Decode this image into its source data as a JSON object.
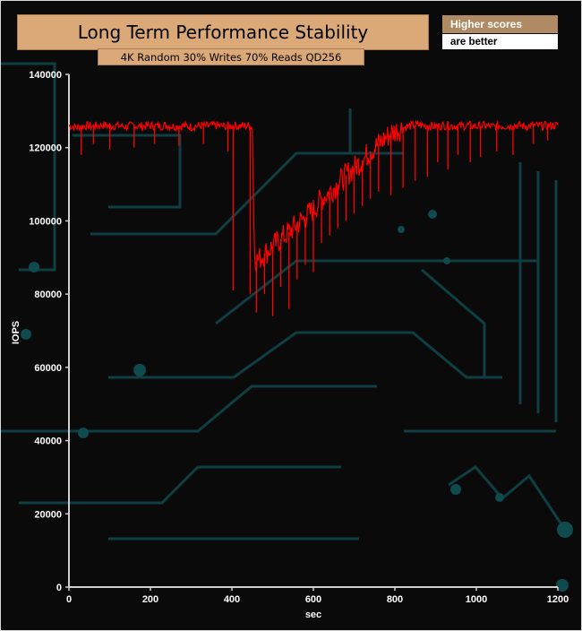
{
  "chart_data": {
    "type": "line",
    "title": "Long Term Performance Stability",
    "subtitle": "4K Random 30% Writes 70% Reads QD256",
    "legend_note": [
      "Higher scores",
      "are better"
    ],
    "xlabel": "sec",
    "ylabel": "IOPS",
    "xlim": [
      0,
      1200
    ],
    "ylim": [
      0,
      140000
    ],
    "xticks": [
      "0",
      "200",
      "400",
      "600",
      "800",
      "1000",
      "1200"
    ],
    "yticks": [
      "0",
      "20000",
      "40000",
      "60000",
      "80000",
      "100000",
      "120000",
      "140000"
    ],
    "grid": false,
    "colors": {
      "line": "#ff0000",
      "axis": "#cfcfcf",
      "title_bg": "#dba877"
    },
    "series": [
      {
        "color": "#ff0000",
        "x": [
          0,
          20,
          40,
          60,
          80,
          100,
          120,
          140,
          160,
          180,
          200,
          220,
          240,
          260,
          280,
          300,
          320,
          340,
          360,
          380,
          400,
          420,
          440,
          450,
          455,
          460,
          480,
          500,
          520,
          540,
          560,
          580,
          600,
          620,
          640,
          660,
          680,
          700,
          720,
          740,
          760,
          780,
          800,
          820,
          840,
          860,
          880,
          900,
          920,
          940,
          960,
          980,
          1000,
          1020,
          1040,
          1060,
          1080,
          1100,
          1120,
          1140,
          1160,
          1180,
          1200
        ],
        "values": [
          126000,
          125500,
          126000,
          125800,
          126200,
          125900,
          126000,
          125700,
          126100,
          125800,
          126000,
          125900,
          126100,
          125800,
          126000,
          125700,
          126000,
          125900,
          126100,
          125800,
          126000,
          125900,
          126000,
          125500,
          92000,
          89000,
          91000,
          93000,
          95000,
          97000,
          99000,
          101000,
          103000,
          106000,
          108000,
          110000,
          112500,
          114500,
          116500,
          119000,
          121000,
          123000,
          124500,
          125500,
          126000,
          126200,
          126000,
          125800,
          126100,
          126000,
          125900,
          126100,
          125800,
          126000,
          125700,
          126000,
          125900,
          126100,
          125800,
          126000,
          125900,
          126000,
          126100
        ]
      }
    ],
    "dips": [
      {
        "x": 30,
        "y": 118000
      },
      {
        "x": 60,
        "y": 121000
      },
      {
        "x": 100,
        "y": 119500
      },
      {
        "x": 160,
        "y": 120000
      },
      {
        "x": 210,
        "y": 121000
      },
      {
        "x": 270,
        "y": 120500
      },
      {
        "x": 330,
        "y": 121000
      },
      {
        "x": 390,
        "y": 119000
      },
      {
        "x": 403,
        "y": 81000
      },
      {
        "x": 445,
        "y": 80000
      },
      {
        "x": 460,
        "y": 75000
      },
      {
        "x": 480,
        "y": 80000
      },
      {
        "x": 500,
        "y": 74000
      },
      {
        "x": 520,
        "y": 82000
      },
      {
        "x": 540,
        "y": 76000
      },
      {
        "x": 560,
        "y": 84000
      },
      {
        "x": 580,
        "y": 88000
      },
      {
        "x": 600,
        "y": 86000
      },
      {
        "x": 620,
        "y": 94000
      },
      {
        "x": 640,
        "y": 96000
      },
      {
        "x": 660,
        "y": 98000
      },
      {
        "x": 680,
        "y": 100000
      },
      {
        "x": 700,
        "y": 102000
      },
      {
        "x": 720,
        "y": 104000
      },
      {
        "x": 740,
        "y": 106000
      },
      {
        "x": 760,
        "y": 108000
      },
      {
        "x": 790,
        "y": 107000
      },
      {
        "x": 820,
        "y": 109000
      },
      {
        "x": 850,
        "y": 111000
      },
      {
        "x": 880,
        "y": 112000
      },
      {
        "x": 905,
        "y": 116000
      },
      {
        "x": 930,
        "y": 114000
      },
      {
        "x": 955,
        "y": 118000
      },
      {
        "x": 985,
        "y": 116000
      },
      {
        "x": 1010,
        "y": 117500
      },
      {
        "x": 1050,
        "y": 119000
      },
      {
        "x": 1090,
        "y": 118000
      },
      {
        "x": 1140,
        "y": 121000
      },
      {
        "x": 1175,
        "y": 122000
      }
    ]
  }
}
